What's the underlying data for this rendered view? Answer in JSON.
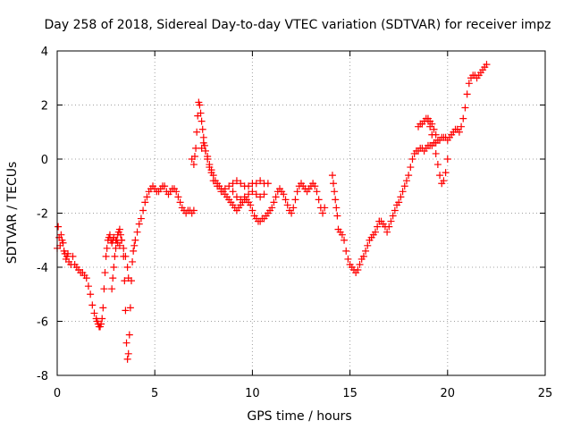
{
  "chart_data": {
    "type": "scatter",
    "title": "Day 258 of 2018, Sidereal Day-to-day VTEC variation (SDTVAR) for receiver impz",
    "xlabel": "GPS time / hours",
    "ylabel": "SDTVAR / TECUs",
    "xlim": [
      0,
      25
    ],
    "ylim": [
      -8,
      4
    ],
    "xticks": [
      "0",
      "5",
      "10",
      "15",
      "20",
      "25"
    ],
    "yticks": [
      "-8",
      "-6",
      "-4",
      "-2",
      "0",
      "2",
      "4"
    ],
    "grid": true,
    "legend": "none",
    "marker": "plus",
    "color": "#ff0000",
    "series": [
      {
        "x": [
          0.0,
          0.05,
          0.1,
          0.15,
          0.2,
          0.25,
          0.3,
          0.35,
          0.4,
          0.45,
          0.5,
          0.55,
          0.6,
          0.7,
          0.8,
          0.9,
          1.0,
          1.1,
          1.2,
          1.3,
          1.4,
          1.5,
          1.6,
          1.7,
          1.8,
          1.9,
          2.0,
          2.05,
          2.1,
          2.15,
          2.2,
          2.25,
          2.3,
          2.35,
          2.4,
          2.45,
          2.5,
          2.55,
          2.6,
          2.65,
          2.7,
          2.75,
          2.8,
          2.85,
          2.9,
          3.0,
          3.1,
          3.2,
          3.3,
          3.4,
          3.45,
          3.5,
          3.55,
          3.6,
          3.65,
          3.7,
          3.75,
          3.8,
          3.85,
          3.9,
          3.95,
          4.0,
          4.1,
          4.2,
          4.3,
          4.4,
          4.5,
          4.6,
          4.7,
          4.8,
          4.9,
          5.0,
          5.1,
          5.2,
          5.3,
          5.4,
          5.5,
          5.6,
          5.7,
          5.8,
          5.9,
          6.0,
          6.1,
          6.2,
          6.3,
          6.4,
          6.5,
          6.6,
          6.7,
          6.8,
          6.9,
          7.0
        ],
        "y": [
          -3.3,
          -2.5,
          -2.9,
          -3.2,
          -2.8,
          -3.0,
          -3.1,
          -3.4,
          -3.5,
          -3.7,
          -3.6,
          -3.5,
          -3.8,
          -3.9,
          -3.6,
          -3.9,
          -4.0,
          -4.1,
          -4.2,
          -4.2,
          -4.3,
          -4.4,
          -4.7,
          -5.0,
          -5.4,
          -5.7,
          -5.9,
          -6.0,
          -6.1,
          -6.2,
          -6.2,
          -6.1,
          -5.9,
          -5.5,
          -4.8,
          -4.2,
          -3.6,
          -3.3,
          -3.0,
          -2.9,
          -2.8,
          -3.0,
          -3.1,
          -3.0,
          -2.9,
          -3.0,
          -3.1,
          -3.2,
          -3.0,
          -3.6,
          -4.5,
          -5.6,
          -6.8,
          -7.4,
          -7.2,
          -6.5,
          -5.5,
          -4.5,
          -3.8,
          -3.4,
          -3.2,
          -3.0,
          -2.7,
          -2.4,
          -2.2,
          -1.9,
          -1.6,
          -1.4,
          -1.2,
          -1.1,
          -1.0,
          -1.1,
          -1.2,
          -1.2,
          -1.1,
          -1.0,
          -1.0,
          -1.2,
          -1.3,
          -1.2,
          -1.1,
          -1.1,
          -1.2,
          -1.4,
          -1.6,
          -1.8,
          -1.9,
          -2.0,
          -1.9,
          -1.9,
          -2.0,
          -1.9
        ]
      },
      {
        "x": [
          2.8,
          2.85,
          2.9,
          2.95,
          3.0,
          3.05,
          3.1,
          3.15,
          3.2,
          3.25,
          3.3,
          3.4,
          3.5,
          3.6,
          3.65
        ],
        "y": [
          -4.8,
          -4.4,
          -4.0,
          -3.6,
          -3.3,
          -3.0,
          -2.8,
          -2.7,
          -2.6,
          -2.8,
          -3.0,
          -3.3,
          -3.6,
          -4.0,
          -4.4
        ]
      },
      {
        "x": [
          6.9,
          7.0,
          7.05,
          7.1,
          7.15,
          7.2,
          7.25,
          7.3,
          7.35,
          7.4,
          7.45,
          7.5,
          7.55,
          7.6,
          7.7,
          7.8,
          7.9,
          8.0,
          8.1,
          8.2,
          8.3,
          8.4,
          8.5,
          8.6,
          8.7,
          8.8,
          8.9,
          9.0,
          9.1,
          9.2,
          9.3,
          9.4,
          9.5,
          9.6,
          9.7,
          9.8,
          9.9,
          10.0,
          10.1,
          10.2,
          10.3,
          10.4,
          10.5,
          10.6,
          10.7,
          10.8,
          10.9,
          11.0,
          11.1,
          11.2,
          11.3,
          11.4,
          11.5,
          11.6,
          11.7,
          11.8,
          11.9,
          12.0,
          12.1,
          12.2,
          12.3,
          12.4,
          12.5,
          12.6,
          12.7,
          12.8,
          12.9,
          13.0,
          13.1,
          13.2,
          13.3,
          13.4,
          13.5,
          13.6,
          13.7
        ],
        "y": [
          0.0,
          -0.2,
          0.1,
          0.4,
          1.0,
          1.6,
          2.1,
          2.0,
          1.7,
          1.4,
          1.1,
          0.8,
          0.5,
          0.3,
          0.1,
          -0.2,
          -0.4,
          -0.6,
          -0.8,
          -0.9,
          -1.0,
          -1.1,
          -1.2,
          -1.3,
          -1.4,
          -1.5,
          -1.6,
          -1.7,
          -1.8,
          -1.9,
          -1.8,
          -1.7,
          -1.6,
          -1.5,
          -1.5,
          -1.6,
          -1.7,
          -1.9,
          -2.1,
          -2.2,
          -2.3,
          -2.3,
          -2.2,
          -2.2,
          -2.1,
          -2.0,
          -1.9,
          -1.8,
          -1.6,
          -1.4,
          -1.2,
          -1.1,
          -1.2,
          -1.3,
          -1.5,
          -1.7,
          -1.9,
          -2.0,
          -1.8,
          -1.5,
          -1.2,
          -1.0,
          -0.9,
          -1.0,
          -1.1,
          -1.2,
          -1.1,
          -1.0,
          -0.9,
          -1.0,
          -1.2,
          -1.5,
          -1.8,
          -2.0,
          -1.8
        ]
      },
      {
        "x": [
          7.4,
          7.5,
          7.6,
          7.7,
          7.8,
          7.9,
          8.0,
          8.2,
          8.4,
          8.6,
          8.8,
          9.0,
          9.2,
          9.4,
          9.6,
          9.8,
          10.0,
          10.2,
          10.4,
          10.6,
          10.8
        ],
        "y": [
          0.4,
          0.6,
          0.3,
          0.0,
          -0.3,
          -0.5,
          -0.8,
          -1.0,
          -1.2,
          -1.1,
          -1.0,
          -0.9,
          -0.8,
          -0.9,
          -1.0,
          -1.0,
          -0.9,
          -0.9,
          -0.8,
          -0.9,
          -0.9
        ]
      },
      {
        "x": [
          9.0,
          9.2,
          9.4,
          9.6,
          9.8,
          10.0,
          10.2,
          10.4,
          10.6
        ],
        "y": [
          -1.2,
          -1.4,
          -1.5,
          -1.4,
          -1.3,
          -1.2,
          -1.3,
          -1.4,
          -1.3
        ]
      },
      {
        "x": [
          14.1,
          14.15,
          14.2,
          14.25,
          14.3,
          14.35,
          14.4,
          14.5,
          14.6,
          14.7,
          14.8,
          14.9,
          15.0,
          15.1,
          15.2,
          15.3,
          15.4,
          15.5,
          15.6,
          15.7,
          15.8,
          15.9,
          16.0,
          16.1,
          16.2,
          16.3,
          16.4,
          16.5
        ],
        "y": [
          -0.6,
          -0.9,
          -1.2,
          -1.5,
          -1.8,
          -2.1,
          -2.6,
          -2.7,
          -2.8,
          -3.0,
          -3.4,
          -3.7,
          -3.9,
          -4.0,
          -4.1,
          -4.2,
          -4.1,
          -3.9,
          -3.7,
          -3.6,
          -3.4,
          -3.2,
          -3.0,
          -2.9,
          -2.8,
          -2.7,
          -2.5,
          -2.3
        ]
      },
      {
        "x": [
          16.5,
          16.6,
          16.7,
          16.8,
          16.9,
          17.0,
          17.1,
          17.2,
          17.3,
          17.4,
          17.5,
          17.6,
          17.7,
          17.8,
          17.9,
          18.0,
          18.1,
          18.2,
          18.3,
          18.4,
          18.5,
          18.6,
          18.7,
          18.8,
          18.9,
          19.0,
          19.1,
          19.2,
          19.3,
          19.4,
          19.5,
          19.6,
          19.7,
          19.8,
          19.9,
          20.0,
          20.1,
          20.2,
          20.3,
          20.4,
          20.5,
          20.6,
          20.7,
          20.8,
          20.9,
          21.0,
          21.1,
          21.2,
          21.3,
          21.4,
          21.5,
          21.6,
          21.7,
          21.8,
          21.9,
          22.0
        ],
        "y": [
          -2.3,
          -2.3,
          -2.4,
          -2.5,
          -2.7,
          -2.5,
          -2.3,
          -2.1,
          -1.9,
          -1.7,
          -1.6,
          -1.4,
          -1.2,
          -1.0,
          -0.8,
          -0.6,
          -0.3,
          0.0,
          0.2,
          0.3,
          0.3,
          0.4,
          0.4,
          0.3,
          0.4,
          0.5,
          0.5,
          0.5,
          0.6,
          0.6,
          0.7,
          0.7,
          0.8,
          0.8,
          0.8,
          0.7,
          0.8,
          0.9,
          1.0,
          1.1,
          1.1,
          1.0,
          1.2,
          1.5,
          1.9,
          2.4,
          2.8,
          3.0,
          3.1,
          3.1,
          3.0,
          3.1,
          3.2,
          3.3,
          3.4,
          3.5
        ]
      },
      {
        "x": [
          18.5,
          18.6,
          18.7,
          18.8,
          18.9,
          19.0,
          19.1,
          19.2,
          19.3,
          19.4,
          19.5,
          19.6,
          19.7,
          19.8,
          19.9,
          20.0
        ],
        "y": [
          1.2,
          1.3,
          1.3,
          1.4,
          1.5,
          1.4,
          1.2,
          0.9,
          0.6,
          0.2,
          -0.2,
          -0.6,
          -0.9,
          -0.8,
          -0.5,
          0.0
        ]
      },
      {
        "x": [
          19.0,
          19.1,
          19.2,
          19.3,
          19.4
        ],
        "y": [
          1.5,
          1.4,
          1.3,
          1.1,
          0.9
        ]
      }
    ]
  }
}
